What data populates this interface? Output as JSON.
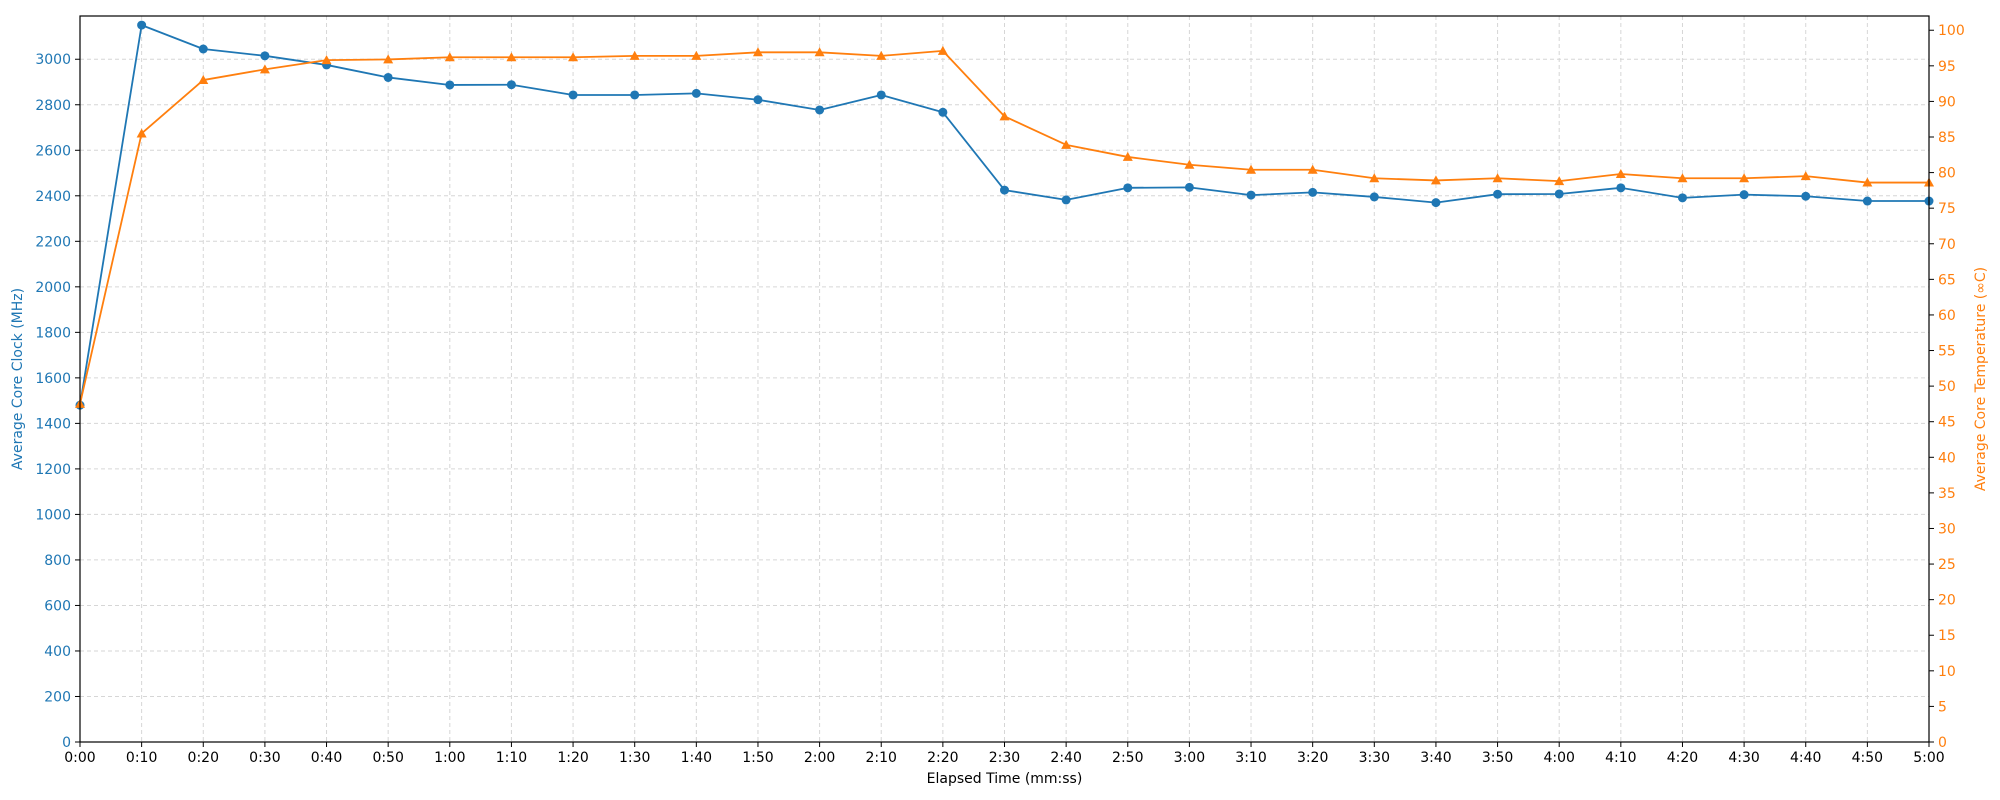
{
  "chart_data": {
    "type": "line",
    "title": "",
    "xlabel": "Elapsed Time (mm:ss)",
    "ylabel_left": "Average Core Clock (MHz)",
    "ylabel_right": "Average Core Temperature (∞C)",
    "x": [
      "0:00",
      "0:10",
      "0:20",
      "0:30",
      "0:40",
      "0:50",
      "1:00",
      "1:10",
      "1:20",
      "1:30",
      "1:40",
      "1:50",
      "2:00",
      "2:10",
      "2:20",
      "2:30",
      "2:40",
      "2:50",
      "3:00",
      "3:10",
      "3:20",
      "3:30",
      "3:40",
      "3:50",
      "4:00",
      "4:10",
      "4:20",
      "4:30",
      "4:40",
      "4:50",
      "5:00"
    ],
    "xlim": [
      "0:00",
      "5:00"
    ],
    "ylim_left": [
      0,
      3190
    ],
    "ylim_right": [
      0,
      102
    ],
    "yticks_left": [
      0,
      200,
      400,
      600,
      800,
      1000,
      1200,
      1400,
      1600,
      1800,
      2000,
      2200,
      2400,
      2600,
      2800,
      3000
    ],
    "yticks_right": [
      0,
      5,
      10,
      15,
      20,
      25,
      30,
      35,
      40,
      45,
      50,
      55,
      60,
      65,
      70,
      75,
      80,
      85,
      90,
      95,
      100
    ],
    "grid": true,
    "series": [
      {
        "axis": "left",
        "marker": "circle",
        "color": "#1f77b4",
        "values": [
          1480,
          3150,
          3045,
          3015,
          2975,
          2920,
          2887,
          2888,
          2843,
          2843,
          2850,
          2822,
          2777,
          2843,
          2767,
          2425,
          2382,
          2435,
          2437,
          2403,
          2415,
          2395,
          2370,
          2407,
          2408,
          2435,
          2391,
          2405,
          2398,
          2377,
          2377
        ]
      },
      {
        "axis": "right",
        "marker": "triangle",
        "color": "#ff7f0e",
        "values": [
          47.5,
          85.5,
          93.0,
          94.5,
          95.8,
          95.9,
          96.2,
          96.2,
          96.2,
          96.4,
          96.4,
          96.9,
          96.9,
          96.4,
          97.1,
          87.9,
          83.9,
          82.2,
          81.1,
          80.4,
          80.4,
          79.2,
          78.9,
          79.2,
          78.8,
          79.8,
          79.2,
          79.2,
          79.5,
          78.6,
          78.6
        ]
      }
    ]
  }
}
